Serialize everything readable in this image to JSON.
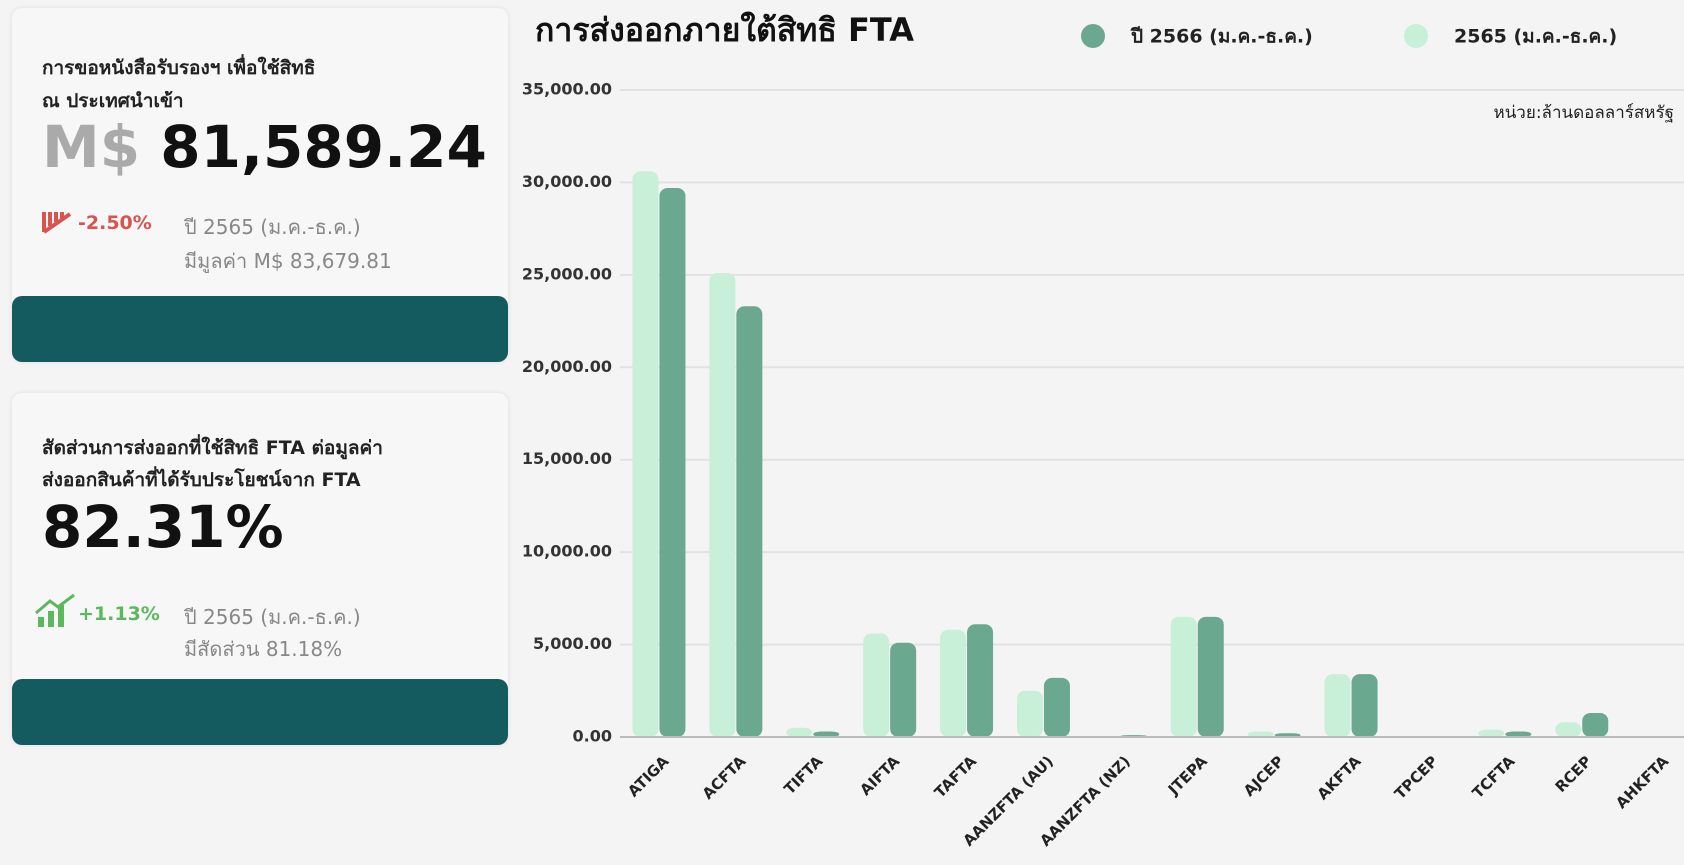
{
  "cards": [
    {
      "title": [
        "การขอหนังสือรับรองฯ เพื่อใช้สิทธิ",
        "ณ ประเทศนำเข้า"
      ],
      "unit": "M$",
      "value": "81,589.24",
      "change": "-2.50%",
      "compare_period": "ปี 2565 (ม.ค.-ธ.ค.)",
      "compare_value": "มีมูลค่า M$ 83,679.81"
    },
    {
      "title": [
        "สัดส่วนการส่งออกที่ใช้สิทธิ FTA ต่อมูลค่า",
        "ส่งออกสินค้าที่ได้รับประโยชน์จาก FTA"
      ],
      "value": "82.31%",
      "change": "+1.13%",
      "compare_period": "ปี 2565 (ม.ค.-ธ.ค.)",
      "compare_value": "มีสัดส่วน 81.18%"
    }
  ],
  "chart_data": {
    "type": "bar",
    "title": "การส่งออกภายใต้สิทธิ FTA",
    "unit_label": "หน่วย:ล้านดอลลาร์สหรัฐ",
    "categories": [
      "ATIGA",
      "ACFTA",
      "TIFTA",
      "AIFTA",
      "TAFTA",
      "AANZFTA (AU)",
      "AANZFTA (NZ)",
      "JTEPA",
      "AJCEP",
      "AKFTA",
      "TPCEP",
      "TCFTA",
      "RCEP",
      "AHKFTA"
    ],
    "series": [
      {
        "name": "ปี 2566 (ม.ค.-ธ.ค.)",
        "color": "#6aa88f",
        "values": [
          29700,
          23300,
          300,
          5100,
          6100,
          3200,
          100,
          6500,
          200,
          3400,
          0,
          300,
          1300,
          0
        ]
      },
      {
        "name": "2565 (ม.ค.-ธ.ค.)",
        "color": "#c8efd8",
        "values": [
          30600,
          25100,
          500,
          5600,
          5800,
          2500,
          50,
          6500,
          300,
          3400,
          0,
          400,
          800,
          0
        ]
      }
    ],
    "ylim": [
      0,
      35000
    ],
    "yticks": [
      {
        "value": 0,
        "label": "0.00"
      },
      {
        "value": 5000,
        "label": "5,000.00"
      },
      {
        "value": 10000,
        "label": "10,000.00"
      },
      {
        "value": 15000,
        "label": "15,000.00"
      },
      {
        "value": 20000,
        "label": "20,000.00"
      },
      {
        "value": 25000,
        "label": "25,000.00"
      },
      {
        "value": 30000,
        "label": "30,000.00"
      },
      {
        "value": 35000,
        "label": "35,000.00"
      }
    ],
    "grid": true,
    "legend": "top-right"
  }
}
